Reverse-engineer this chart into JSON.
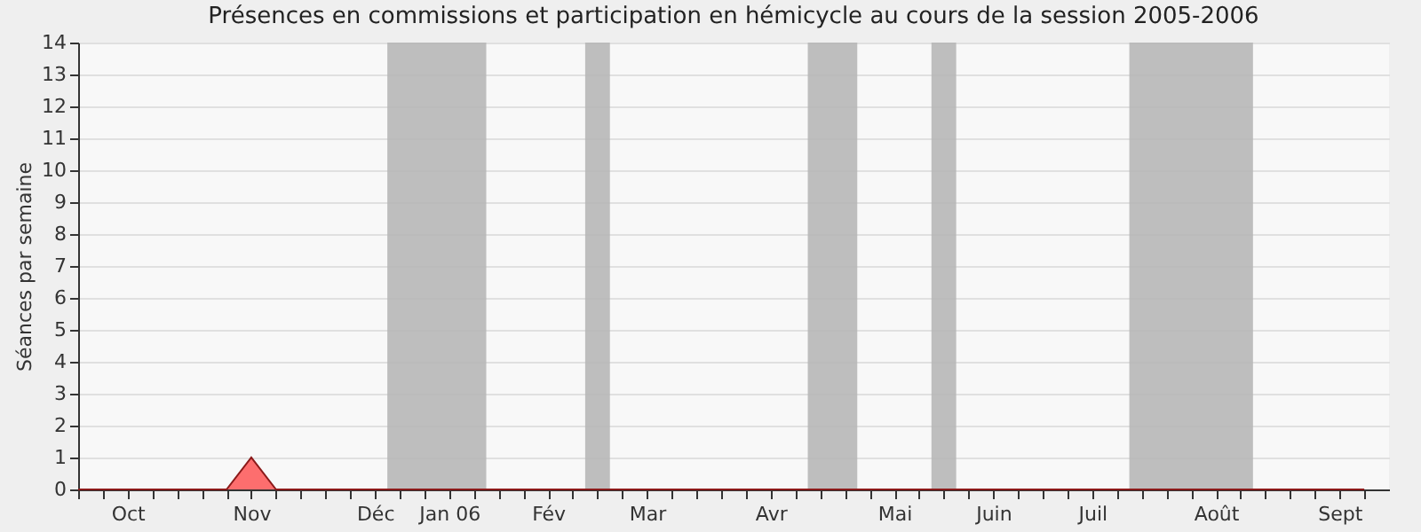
{
  "chart_data": {
    "type": "area",
    "title": "Présences en commissions et participation en hémicycle au cours de la session 2005-2006",
    "ylabel": "Séances par semaine",
    "categories": [
      null,
      null,
      "Oct",
      null,
      null,
      null,
      null,
      "Nov",
      null,
      null,
      null,
      null,
      "Déc",
      null,
      null,
      "Jan 06",
      null,
      null,
      null,
      "Fév",
      null,
      null,
      null,
      "Mar",
      null,
      null,
      null,
      null,
      "Avr",
      null,
      null,
      null,
      null,
      "Mai",
      null,
      null,
      null,
      "Juin",
      null,
      null,
      null,
      "Juil",
      null,
      null,
      null,
      null,
      "Août",
      null,
      null,
      null,
      null,
      "Sept",
      null
    ],
    "series": [
      {
        "color": "#ff3333",
        "values": [
          0,
          0,
          0,
          0,
          0,
          0,
          0,
          1,
          0,
          0,
          0,
          0,
          0,
          0,
          0,
          0,
          0,
          0,
          0,
          0,
          0,
          0,
          0,
          0,
          0,
          0,
          0,
          0,
          0,
          0,
          0,
          0,
          0,
          0,
          0,
          0,
          0,
          0,
          0,
          0,
          0,
          0,
          0,
          0,
          0,
          0,
          0,
          0,
          0,
          0,
          0,
          0,
          0
        ]
      }
    ],
    "ylim": [
      0,
      14
    ],
    "yticks": [
      0,
      1,
      2,
      3,
      4,
      5,
      6,
      7,
      8,
      9,
      10,
      11,
      12,
      13,
      14
    ],
    "grid": "y"
  }
}
